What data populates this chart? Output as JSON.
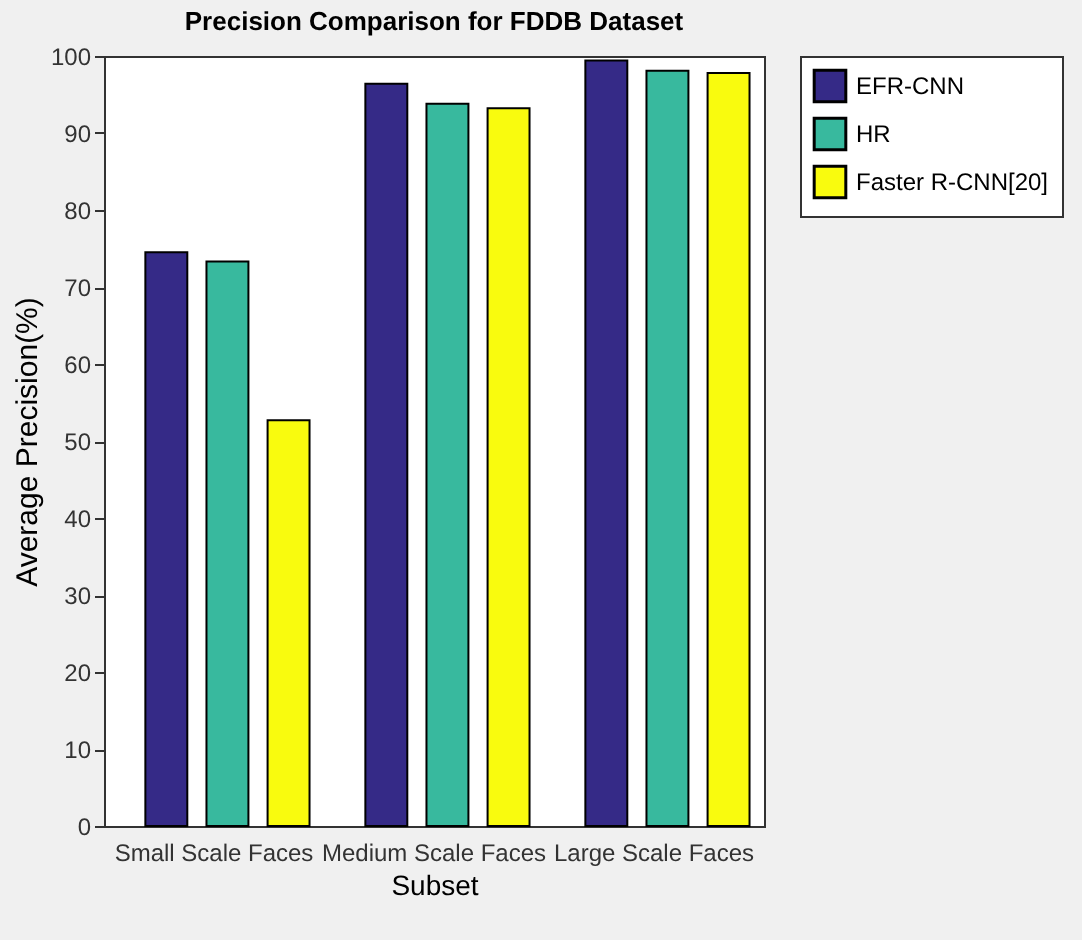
{
  "chart_data": {
    "type": "bar",
    "title": "Precision Comparison for FDDB Dataset",
    "xlabel": "Subset",
    "ylabel": "Average Precision(%)",
    "categories": [
      "Small Scale Faces",
      "Medium Scale Faces",
      "Large Scale Faces"
    ],
    "series": [
      {
        "name": "EFR-CNN",
        "color": "#352a87",
        "values": [
          74.5,
          96.4,
          99.4
        ]
      },
      {
        "name": "HR",
        "color": "#38b99e",
        "values": [
          73.3,
          93.8,
          98.1
        ]
      },
      {
        "name": "Faster R-CNN[20]",
        "color": "#f9fb0e",
        "values": [
          52.7,
          93.2,
          97.8
        ]
      }
    ],
    "ylim": [
      0,
      100
    ],
    "yticks": [
      0,
      10,
      20,
      30,
      40,
      50,
      60,
      70,
      80,
      90,
      100
    ],
    "grid": false,
    "legend": "right"
  }
}
